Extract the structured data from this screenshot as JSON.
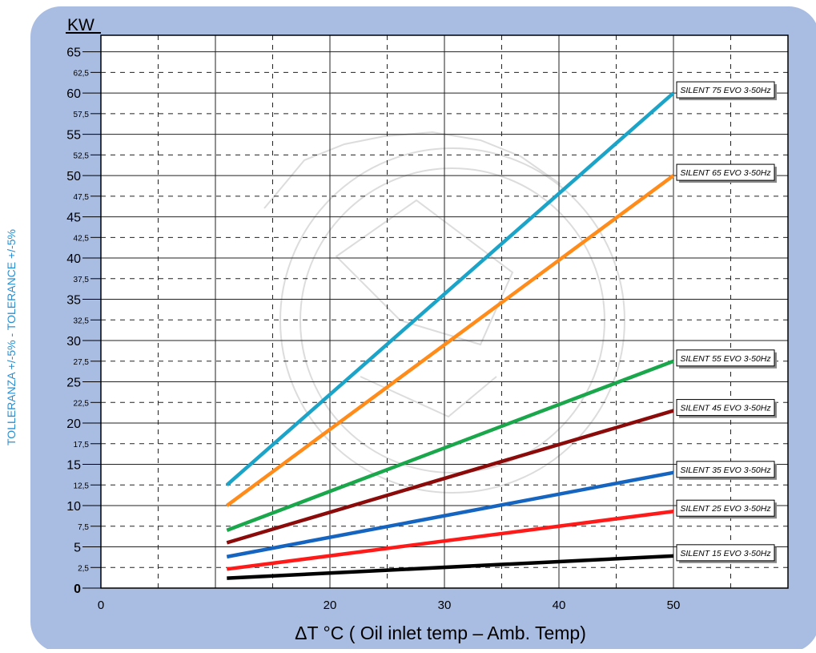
{
  "chart_data": {
    "type": "line",
    "ylabel": "KW",
    "side_label": "TOLLERANZA +/-5% - TOLERANCE +/-5%",
    "xlabel": "ΔT °C ( Oil inlet temp – Amb. Temp)",
    "xlim": [
      0,
      60
    ],
    "ylim": [
      0,
      67
    ],
    "x_major_ticks": [
      "0",
      "20",
      "30",
      "40",
      "50"
    ],
    "x_major_values": [
      0,
      20,
      30,
      40,
      50
    ],
    "y_major_ticks": [
      "0",
      "5",
      "10",
      "15",
      "20",
      "25",
      "30",
      "35",
      "40",
      "45",
      "50",
      "55",
      "60",
      "65"
    ],
    "y_minor_ticks": [
      "2,5",
      "7,5",
      "12,5",
      "17,5",
      "22,5",
      "27,5",
      "32,5",
      "37,5",
      "42,5",
      "47,5",
      "52,5",
      "57,5",
      "62,5"
    ],
    "grid": true,
    "legend_placement": "right, at line ends",
    "series": [
      {
        "name": "SILENT 75 EVO 3-50Hz",
        "color": "#1ba3c8",
        "x": [
          11,
          50
        ],
        "values": [
          12.5,
          60
        ]
      },
      {
        "name": "SILENT 65 EVO 3-50Hz",
        "color": "#ff8c1a",
        "x": [
          11,
          50
        ],
        "values": [
          10,
          50
        ]
      },
      {
        "name": "SILENT 55 EVO 3-50Hz",
        "color": "#1aa64b",
        "x": [
          11,
          50
        ],
        "values": [
          7,
          27.5
        ]
      },
      {
        "name": "SILENT 45 EVO 3-50Hz",
        "color": "#8b0a0a",
        "x": [
          11,
          50
        ],
        "values": [
          5.5,
          21.5
        ]
      },
      {
        "name": "SILENT 35 EVO 3-50Hz",
        "color": "#1565c0",
        "x": [
          11,
          50
        ],
        "values": [
          3.8,
          14
        ]
      },
      {
        "name": "SILENT 25 EVO 3-50Hz",
        "color": "#ff1a1a",
        "x": [
          11,
          50
        ],
        "values": [
          2.3,
          9.3
        ]
      },
      {
        "name": "SILENT 15 EVO 3-50Hz",
        "color": "#000000",
        "x": [
          11,
          50
        ],
        "values": [
          1.2,
          3.9
        ]
      }
    ]
  },
  "colors": {
    "panel": "#a9bde3",
    "plot_bg": "#ffffff",
    "side_label": "#2c8fd0"
  }
}
